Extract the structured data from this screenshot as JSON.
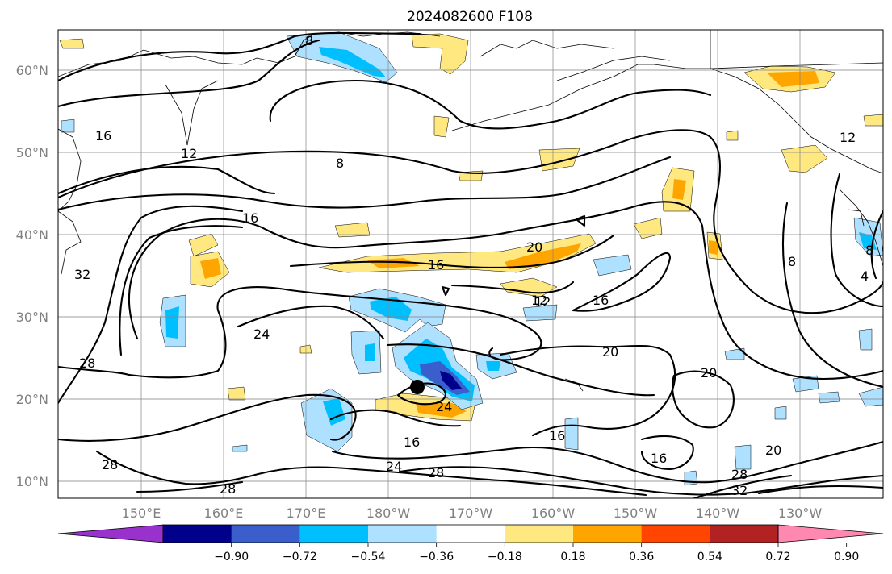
{
  "title": "2024082600 F108",
  "map": {
    "lon_labels": [
      "150°E",
      "160°E",
      "170°E",
      "180°W",
      "170°W",
      "160°W",
      "150°W",
      "140°W",
      "130°W"
    ],
    "lat_labels": [
      "60°N",
      "50°N",
      "40°N",
      "30°N",
      "20°N",
      "10°N"
    ],
    "marker": "black-dot"
  },
  "contour_labels": [
    "8",
    "8",
    "12",
    "16",
    "16",
    "12",
    "16",
    "20",
    "16",
    "12",
    "8",
    "4",
    "8",
    "32",
    "28",
    "24",
    "20",
    "20",
    "24",
    "24",
    "16",
    "16",
    "16",
    "16",
    "20",
    "28",
    "28",
    "28",
    "24",
    "28",
    "32",
    "12"
  ],
  "colorbar": {
    "ticks": [
      "−0.90",
      "−0.72",
      "−0.54",
      "−0.36",
      "−0.18",
      "0.18",
      "0.36",
      "0.54",
      "0.72",
      "0.90"
    ],
    "colors": [
      "#9932cc",
      "#00008b",
      "#3a5fcd",
      "#00bfff",
      "#aee0ff",
      "#ffffff",
      "#ffe880",
      "#ffa500",
      "#ff4500",
      "#b22222",
      "#ff88b0"
    ]
  }
}
